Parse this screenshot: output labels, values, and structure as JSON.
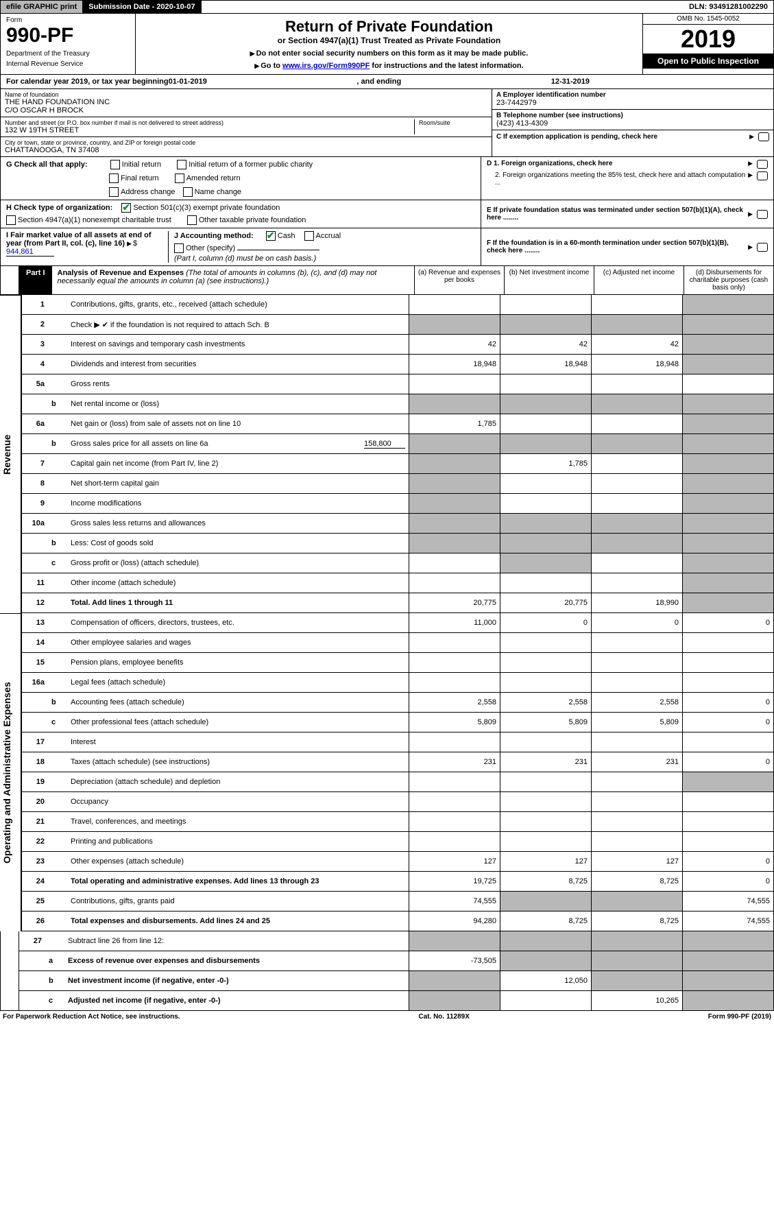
{
  "topbar": {
    "efile": "efile GRAPHIC print",
    "submission": "Submission Date - 2020-10-07",
    "dln": "DLN: 93491281002290"
  },
  "header": {
    "form_label": "Form",
    "form_number": "990-PF",
    "dept1": "Department of the Treasury",
    "dept2": "Internal Revenue Service",
    "title": "Return of Private Foundation",
    "subtitle": "or Section 4947(a)(1) Trust Treated as Private Foundation",
    "instr1": "Do not enter social security numbers on this form as it may be made public.",
    "instr2_pre": "Go to ",
    "instr2_link": "www.irs.gov/Form990PF",
    "instr2_post": " for instructions and the latest information.",
    "omb": "OMB No. 1545-0052",
    "year": "2019",
    "open": "Open to Public Inspection"
  },
  "cal_year": {
    "pre": "For calendar year 2019, or tax year beginning ",
    "begin": "01-01-2019",
    "mid": ", and ending ",
    "end": "12-31-2019"
  },
  "id": {
    "name_label": "Name of foundation",
    "name1": "THE HAND FOUNDATION INC",
    "name2": "C/O OSCAR H BROCK",
    "addr_label": "Number and street (or P.O. box number if mail is not delivered to street address)",
    "addr": "132 W 19TH STREET",
    "room_label": "Room/suite",
    "city_label": "City or town, state or province, country, and ZIP or foreign postal code",
    "city": "CHATTANOOGA, TN  37408",
    "a_label": "A Employer identification number",
    "a_val": "23-7442979",
    "b_label": "B Telephone number (see instructions)",
    "b_val": "(423) 413-4309",
    "c_label": "C If exemption application is pending, check here"
  },
  "checks": {
    "g_label": "G Check all that apply:",
    "g1": "Initial return",
    "g2": "Initial return of a former public charity",
    "g3": "Final return",
    "g4": "Amended return",
    "g5": "Address change",
    "g6": "Name change",
    "h_label": "H Check type of organization:",
    "h1": "Section 501(c)(3) exempt private foundation",
    "h2": "Section 4947(a)(1) nonexempt charitable trust",
    "h3": "Other taxable private foundation",
    "d1": "D 1. Foreign organizations, check here",
    "d2": "2. Foreign organizations meeting the 85% test, check here and attach computation ...",
    "e": "E  If private foundation status was terminated under section 507(b)(1)(A), check here ........",
    "i_label": "I Fair market value of all assets at end of year (from Part II, col. (c), line 16)",
    "i_val": "944,861",
    "j_label": "J Accounting method:",
    "j1": "Cash",
    "j2": "Accrual",
    "j3": "Other (specify)",
    "j_note": "(Part I, column (d) must be on cash basis.)",
    "f": "F  If the foundation is in a 60-month termination under section 507(b)(1)(B), check here ........"
  },
  "part1": {
    "badge": "Part I",
    "title_b": "Analysis of Revenue and Expenses",
    "title_rest": " (The total of amounts in columns (b), (c), and (d) may not necessarily equal the amounts in column (a) (see instructions).)",
    "col_a": "(a)   Revenue and expenses per books",
    "col_b": "(b)  Net investment income",
    "col_c": "(c)  Adjusted net income",
    "col_d": "(d)  Disbursements for charitable purposes (cash basis only)"
  },
  "sides": {
    "revenue": "Revenue",
    "opex": "Operating and Administrative Expenses"
  },
  "rows": {
    "r1": {
      "n": "1",
      "s": "",
      "d": "Contributions, gifts, grants, etc., received (attach schedule)"
    },
    "r2": {
      "n": "2",
      "s": "",
      "d": "Check ▶ ✔ if the foundation is not required to attach Sch. B"
    },
    "r3": {
      "n": "3",
      "s": "",
      "d": "Interest on savings and temporary cash investments",
      "a": "42",
      "b": "42",
      "c": "42"
    },
    "r4": {
      "n": "4",
      "s": "",
      "d": "Dividends and interest from securities",
      "a": "18,948",
      "b": "18,948",
      "c": "18,948"
    },
    "r5a": {
      "n": "5a",
      "s": "",
      "d": "Gross rents"
    },
    "r5b": {
      "n": "",
      "s": "b",
      "d": "Net rental income or (loss)"
    },
    "r6a": {
      "n": "6a",
      "s": "",
      "d": "Net gain or (loss) from sale of assets not on line 10",
      "a": "1,785"
    },
    "r6b": {
      "n": "",
      "s": "b",
      "d": "Gross sales price for all assets on line 6a",
      "inline": "158,800"
    },
    "r7": {
      "n": "7",
      "s": "",
      "d": "Capital gain net income (from Part IV, line 2)",
      "b": "1,785"
    },
    "r8": {
      "n": "8",
      "s": "",
      "d": "Net short-term capital gain"
    },
    "r9": {
      "n": "9",
      "s": "",
      "d": "Income modifications"
    },
    "r10a": {
      "n": "10a",
      "s": "",
      "d": "Gross sales less returns and allowances"
    },
    "r10b": {
      "n": "",
      "s": "b",
      "d": "Less: Cost of goods sold"
    },
    "r10c": {
      "n": "",
      "s": "c",
      "d": "Gross profit or (loss) (attach schedule)"
    },
    "r11": {
      "n": "11",
      "s": "",
      "d": "Other income (attach schedule)"
    },
    "r12": {
      "n": "12",
      "s": "",
      "d": "Total. Add lines 1 through 11",
      "a": "20,775",
      "b": "20,775",
      "c": "18,990",
      "bold": true
    },
    "r13": {
      "n": "13",
      "s": "",
      "d": "Compensation of officers, directors, trustees, etc.",
      "a": "11,000",
      "b": "0",
      "c": "0",
      "dcol": "0"
    },
    "r14": {
      "n": "14",
      "s": "",
      "d": "Other employee salaries and wages"
    },
    "r15": {
      "n": "15",
      "s": "",
      "d": "Pension plans, employee benefits"
    },
    "r16a": {
      "n": "16a",
      "s": "",
      "d": "Legal fees (attach schedule)"
    },
    "r16b": {
      "n": "",
      "s": "b",
      "d": "Accounting fees (attach schedule)",
      "a": "2,558",
      "b": "2,558",
      "c": "2,558",
      "dcol": "0"
    },
    "r16c": {
      "n": "",
      "s": "c",
      "d": "Other professional fees (attach schedule)",
      "a": "5,809",
      "b": "5,809",
      "c": "5,809",
      "dcol": "0"
    },
    "r17": {
      "n": "17",
      "s": "",
      "d": "Interest"
    },
    "r18": {
      "n": "18",
      "s": "",
      "d": "Taxes (attach schedule) (see instructions)",
      "a": "231",
      "b": "231",
      "c": "231",
      "dcol": "0"
    },
    "r19": {
      "n": "19",
      "s": "",
      "d": "Depreciation (attach schedule) and depletion"
    },
    "r20": {
      "n": "20",
      "s": "",
      "d": "Occupancy"
    },
    "r21": {
      "n": "21",
      "s": "",
      "d": "Travel, conferences, and meetings"
    },
    "r22": {
      "n": "22",
      "s": "",
      "d": "Printing and publications"
    },
    "r23": {
      "n": "23",
      "s": "",
      "d": "Other expenses (attach schedule)",
      "a": "127",
      "b": "127",
      "c": "127",
      "dcol": "0"
    },
    "r24": {
      "n": "24",
      "s": "",
      "d": "Total operating and administrative expenses. Add lines 13 through 23",
      "a": "19,725",
      "b": "8,725",
      "c": "8,725",
      "dcol": "0",
      "bold": true
    },
    "r25": {
      "n": "25",
      "s": "",
      "d": "Contributions, gifts, grants paid",
      "a": "74,555",
      "dcol": "74,555"
    },
    "r26": {
      "n": "26",
      "s": "",
      "d": "Total expenses and disbursements. Add lines 24 and 25",
      "a": "94,280",
      "b": "8,725",
      "c": "8,725",
      "dcol": "74,555",
      "bold": true
    },
    "r27": {
      "n": "27",
      "s": "",
      "d": "Subtract line 26 from line 12:"
    },
    "r27a": {
      "n": "",
      "s": "a",
      "d": "Excess of revenue over expenses and disbursements",
      "a": "-73,505",
      "bold": true
    },
    "r27b": {
      "n": "",
      "s": "b",
      "d": "Net investment income (if negative, enter -0-)",
      "b": "12,050",
      "bold": true
    },
    "r27c": {
      "n": "",
      "s": "c",
      "d": "Adjusted net income (if negative, enter -0-)",
      "c": "10,265",
      "bold": true
    }
  },
  "footer": {
    "left": "For Paperwork Reduction Act Notice, see instructions.",
    "mid": "Cat. No. 11289X",
    "right": "Form 990-PF (2019)"
  },
  "colors": {
    "grey": "#b8b8b8",
    "green": "#1a8c3a",
    "link": "#0000cc"
  }
}
